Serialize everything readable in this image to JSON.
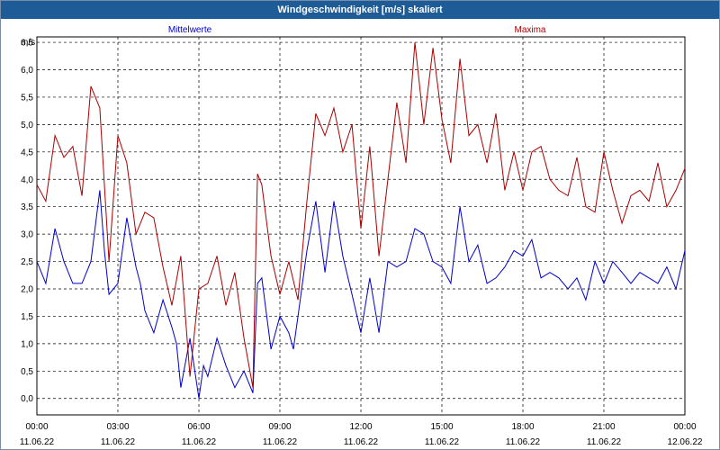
{
  "colors": {
    "mean": "#0000cc",
    "max": "#aa0000",
    "titlebar": "#1d5c97"
  },
  "chart_data": {
    "type": "line",
    "title": "Windgeschwindigkeit [m/s] skaliert",
    "ylabel": "m/s",
    "ylim": [
      -0.3,
      6.6
    ],
    "xlim": [
      0,
      24
    ],
    "grid": true,
    "legend_placement": "top",
    "yticks": [
      "0,0",
      "0,5",
      "1,0",
      "1,5",
      "2,0",
      "2,5",
      "3,0",
      "3,5",
      "4,0",
      "4,5",
      "5,0",
      "5,5",
      "6,0",
      "6,5"
    ],
    "xticks": [
      {
        "time": "00:00",
        "date": "11.06.22"
      },
      {
        "time": "03:00",
        "date": "11.06.22"
      },
      {
        "time": "06:00",
        "date": "11.06.22"
      },
      {
        "time": "09:00",
        "date": "11.06.22"
      },
      {
        "time": "12:00",
        "date": "11.06.22"
      },
      {
        "time": "15:00",
        "date": "11.06.22"
      },
      {
        "time": "18:00",
        "date": "11.06.22"
      },
      {
        "time": "21:00",
        "date": "11.06.22"
      },
      {
        "time": "00:00",
        "date": "12.06.22"
      }
    ],
    "series": [
      {
        "name": "Mittelwerte",
        "x": [
          0,
          0.33,
          0.67,
          1,
          1.33,
          1.67,
          2,
          2.33,
          2.5,
          2.67,
          3,
          3.33,
          3.67,
          3.83,
          4,
          4.33,
          4.67,
          5,
          5.17,
          5.33,
          5.67,
          6,
          6.17,
          6.33,
          6.67,
          7,
          7.33,
          7.67,
          8,
          8.17,
          8.33,
          8.67,
          9,
          9.33,
          9.5,
          9.67,
          10,
          10.33,
          10.67,
          11,
          11.33,
          11.67,
          12,
          12.33,
          12.67,
          13,
          13.33,
          13.67,
          14,
          14.33,
          14.67,
          15,
          15.33,
          15.67,
          16,
          16.33,
          16.67,
          17,
          17.33,
          17.67,
          18,
          18.33,
          18.67,
          19,
          19.33,
          19.67,
          20,
          20.33,
          20.67,
          21,
          21.33,
          21.67,
          22,
          22.33,
          22.67,
          23,
          23.33,
          23.67,
          24
        ],
        "y": [
          2.5,
          2.1,
          3.1,
          2.5,
          2.1,
          2.1,
          2.5,
          3.8,
          2.7,
          1.9,
          2.1,
          3.3,
          2.4,
          2.1,
          1.6,
          1.2,
          1.8,
          1.3,
          1.0,
          0.2,
          1.1,
          0.0,
          0.6,
          0.4,
          1.1,
          0.6,
          0.2,
          0.5,
          0.1,
          2.1,
          2.2,
          0.9,
          1.5,
          1.2,
          0.9,
          1.5,
          2.7,
          3.6,
          2.3,
          3.6,
          2.6,
          1.9,
          1.2,
          2.2,
          1.2,
          2.5,
          2.4,
          2.5,
          3.1,
          3.0,
          2.5,
          2.4,
          2.1,
          3.5,
          2.5,
          2.8,
          2.1,
          2.2,
          2.4,
          2.7,
          2.6,
          2.9,
          2.2,
          2.3,
          2.2,
          2.0,
          2.2,
          1.8,
          2.5,
          2.1,
          2.5,
          2.3,
          2.1,
          2.3,
          2.2,
          2.1,
          2.4,
          2.0,
          2.7
        ]
      },
      {
        "name": "Maxima",
        "x": [
          0,
          0.33,
          0.67,
          1,
          1.33,
          1.67,
          2,
          2.33,
          2.67,
          3,
          3.33,
          3.67,
          4,
          4.33,
          4.67,
          5,
          5.33,
          5.67,
          6,
          6.33,
          6.67,
          7,
          7.33,
          7.67,
          8,
          8.17,
          8.33,
          8.67,
          9,
          9.33,
          9.67,
          10,
          10.33,
          10.67,
          11,
          11.33,
          11.67,
          12,
          12.33,
          12.67,
          13,
          13.33,
          13.67,
          14,
          14.33,
          14.67,
          15,
          15.33,
          15.67,
          16,
          16.33,
          16.67,
          17,
          17.33,
          17.67,
          18,
          18.33,
          18.67,
          19,
          19.33,
          19.67,
          20,
          20.33,
          20.67,
          21,
          21.33,
          21.67,
          22,
          22.33,
          22.67,
          23,
          23.33,
          23.67,
          24
        ],
        "y": [
          3.9,
          3.6,
          4.8,
          4.4,
          4.6,
          3.7,
          5.7,
          5.3,
          2.5,
          4.8,
          4.3,
          3.0,
          3.4,
          3.3,
          2.4,
          1.7,
          2.6,
          0.4,
          2.0,
          2.1,
          2.6,
          1.7,
          2.3,
          1.1,
          0.2,
          4.1,
          3.9,
          2.6,
          1.9,
          2.5,
          1.8,
          3.6,
          5.2,
          4.8,
          5.3,
          4.5,
          5.0,
          3.1,
          4.6,
          2.6,
          4.0,
          5.4,
          4.3,
          6.5,
          5.0,
          6.4,
          5.1,
          4.3,
          6.2,
          4.8,
          5.0,
          4.3,
          5.2,
          3.8,
          4.5,
          3.8,
          4.5,
          4.6,
          4.0,
          3.8,
          3.7,
          4.4,
          3.5,
          3.4,
          4.5,
          3.8,
          3.2,
          3.7,
          3.8,
          3.6,
          4.3,
          3.5,
          3.8,
          4.2
        ]
      }
    ]
  }
}
